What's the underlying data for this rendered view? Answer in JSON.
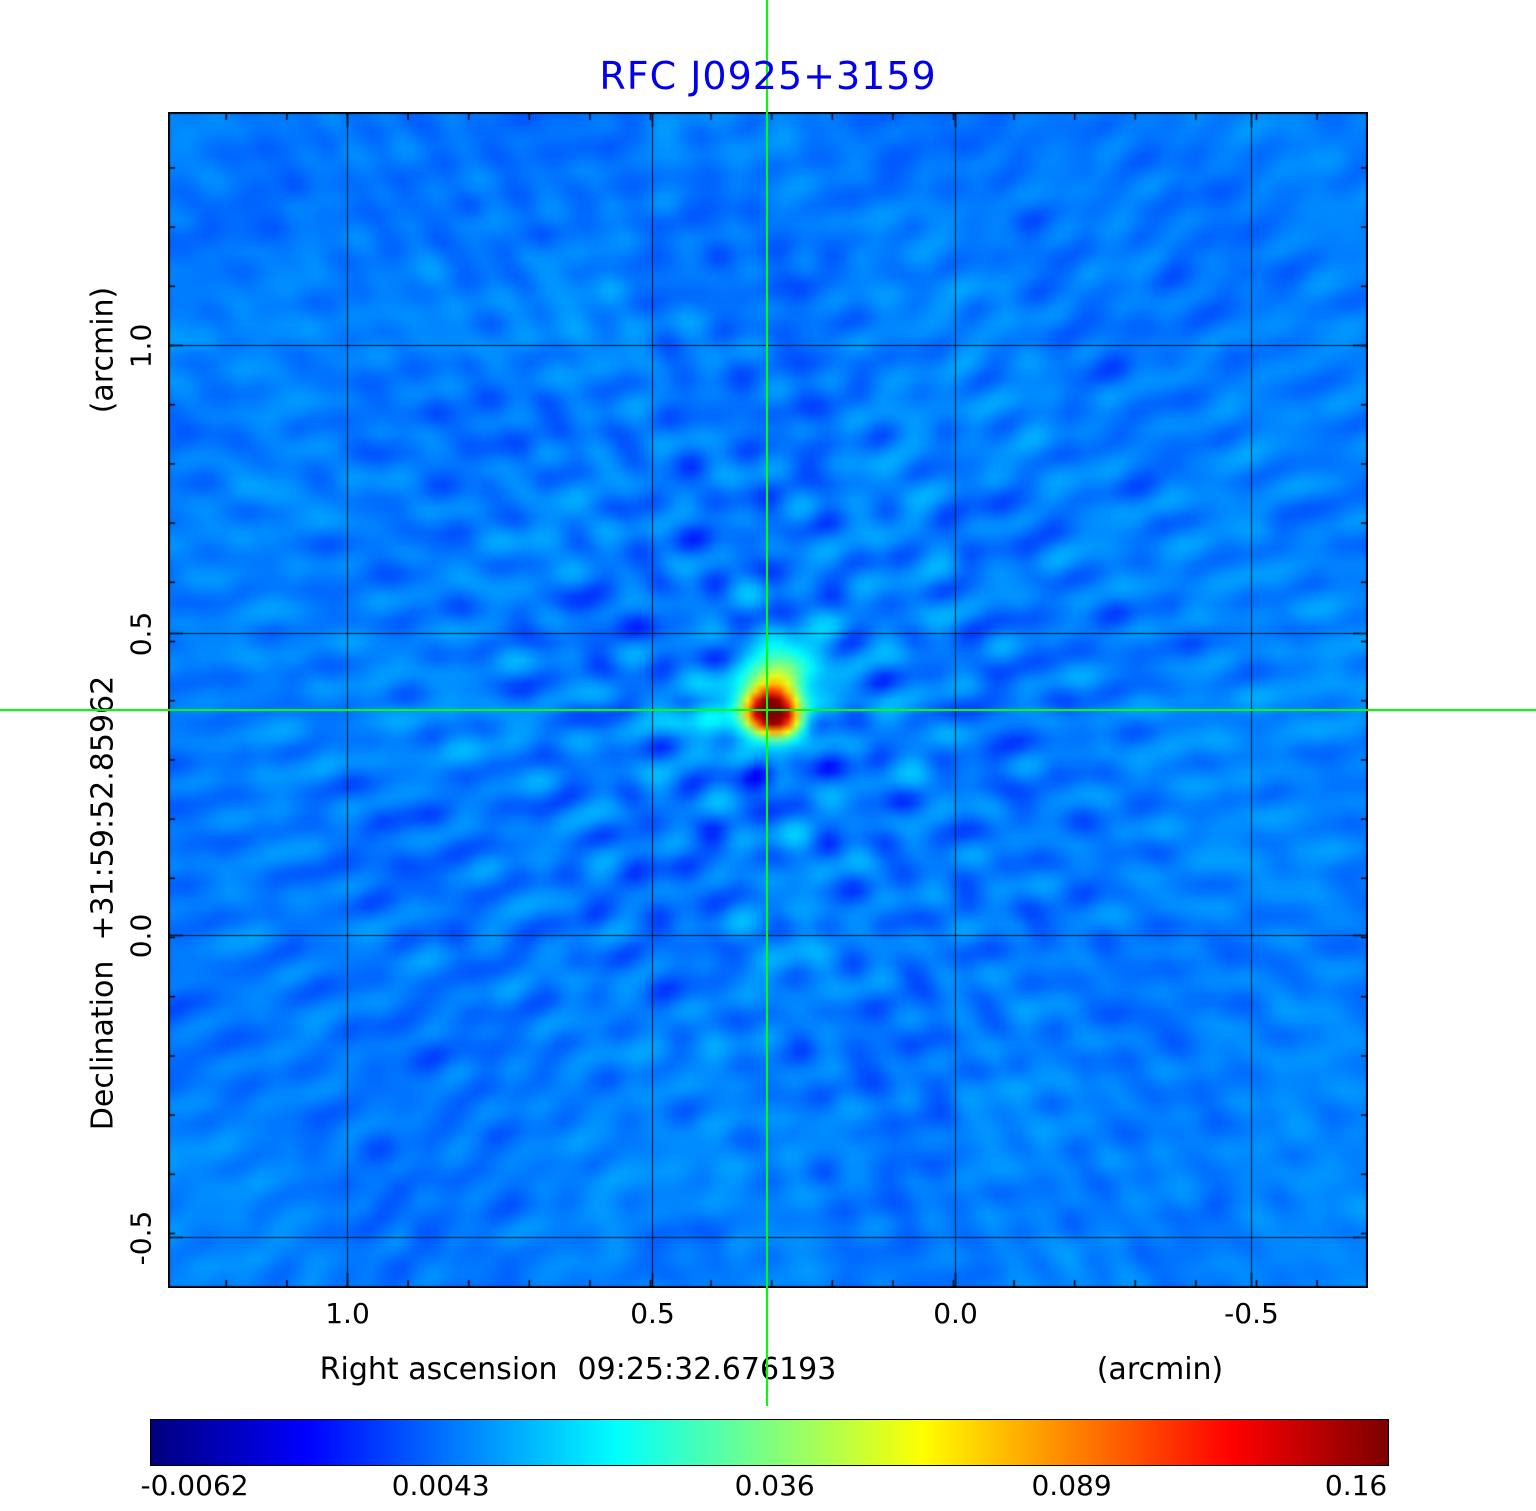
{
  "title": "RFC J0925+3159",
  "colors": {
    "title": "#0000ee",
    "crosshair": "#00ff00",
    "background": "#ffffff",
    "axis_text": "#000000"
  },
  "axes": {
    "x_label": "Right ascension",
    "x_value": "09:25:32.676193",
    "x_unit": "(arcmin)",
    "y_label": "Declination",
    "y_value": "+31:59:52.85962",
    "y_unit": "(arcmin)",
    "x_ticks": [
      "1.0",
      "0.5",
      "0.0",
      "-0.5"
    ],
    "y_ticks": [
      "1.0",
      "0.5",
      "0.0",
      "-0.5"
    ]
  },
  "colorbar": {
    "ticks": [
      "-0.0062",
      "0.0043",
      "0.036",
      "0.089",
      "0.16"
    ],
    "colormap": "jet"
  },
  "chart_data": {
    "type": "heatmap",
    "title": "RFC J0925+3159",
    "xlabel": "Right ascension 09:25:32.676193 (arcmin)",
    "ylabel": "Declination +31:59:52.85962 (arcmin)",
    "x_ticks_arcmin": [
      1.0,
      0.5,
      0.0,
      -0.5
    ],
    "y_ticks_arcmin": [
      1.0,
      0.5,
      0.0,
      -0.5
    ],
    "x_range_arcmin": [
      1.3,
      -0.69
    ],
    "y_range_arcmin": [
      -0.59,
      1.39
    ],
    "grid": true,
    "colormap": "jet",
    "intensity_scale": "sqrt",
    "colorbar_tick_values": [
      -0.0062,
      0.0043,
      0.036,
      0.089,
      0.16
    ],
    "value_min": -0.0062,
    "value_max": 0.16,
    "background_level": 0.004,
    "source": {
      "peak_value": 0.16,
      "x_arcmin": 0.31,
      "y_arcmin": 0.37,
      "marker": "green crosshair centered on source"
    }
  }
}
